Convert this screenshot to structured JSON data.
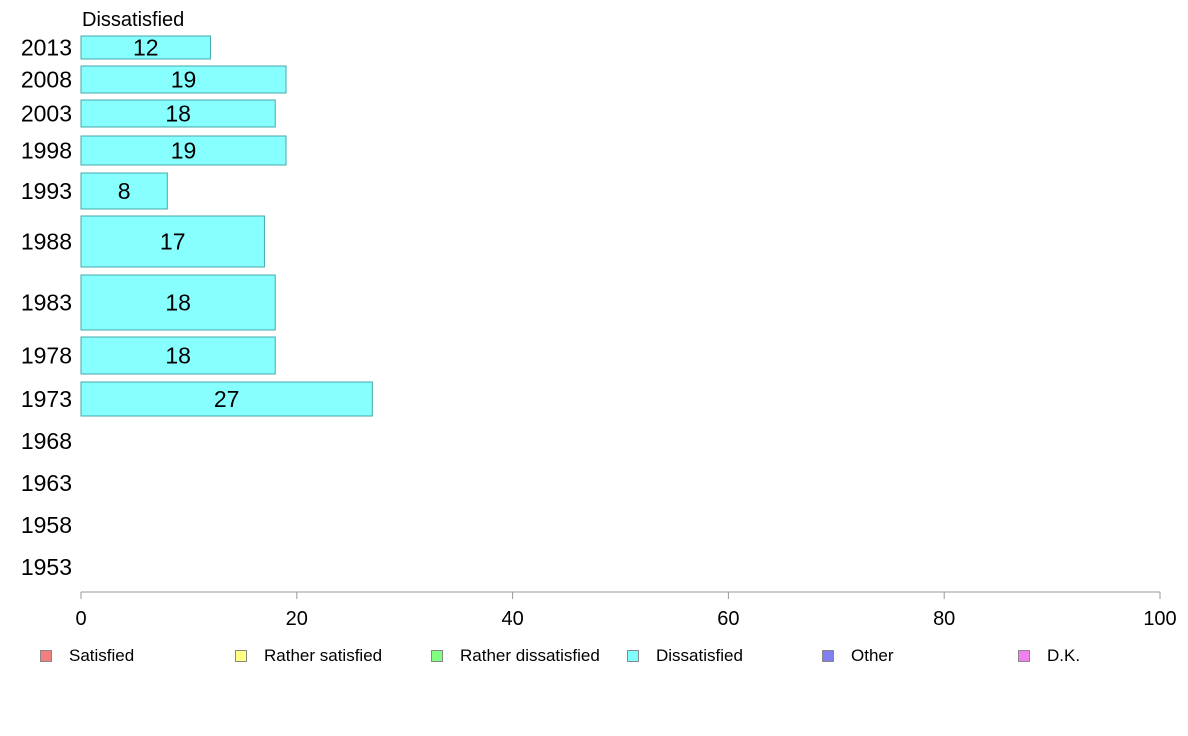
{
  "chart_data": {
    "type": "bar",
    "orientation": "horizontal",
    "title": "Dissatisfied",
    "xlabel": "",
    "ylabel": "",
    "xlim": [
      0,
      100
    ],
    "xticks": [
      0,
      20,
      40,
      60,
      80,
      100
    ],
    "grid": false,
    "categories": [
      "2013",
      "2008",
      "2003",
      "1998",
      "1993",
      "1988",
      "1983",
      "1978",
      "1973",
      "1968",
      "1963",
      "1958",
      "1953"
    ],
    "series": [
      {
        "name": "Dissatisfied",
        "values": [
          12,
          19,
          18,
          19,
          8,
          17,
          18,
          18,
          27,
          null,
          null,
          null,
          null
        ],
        "data_labels": [
          "12",
          "19",
          "18",
          "19",
          "8",
          "17",
          "18",
          "18",
          "27",
          "",
          "",
          "",
          ""
        ]
      }
    ],
    "legend": {
      "position": "bottom",
      "items": [
        {
          "label": "Satisfied",
          "color": "#f08080"
        },
        {
          "label": "Rather satisfied",
          "color": "#ffff80"
        },
        {
          "label": "Rather dissatisfied",
          "color": "#80ff80"
        },
        {
          "label": "Dissatisfied",
          "color": "#80ffff"
        },
        {
          "label": "Other",
          "color": "#8080f0"
        },
        {
          "label": "D.K.",
          "color": "#f080f0"
        }
      ]
    },
    "bar_color": "#88ffff",
    "bar_border_color": "#44aaaa",
    "axis_color": "#999999"
  }
}
